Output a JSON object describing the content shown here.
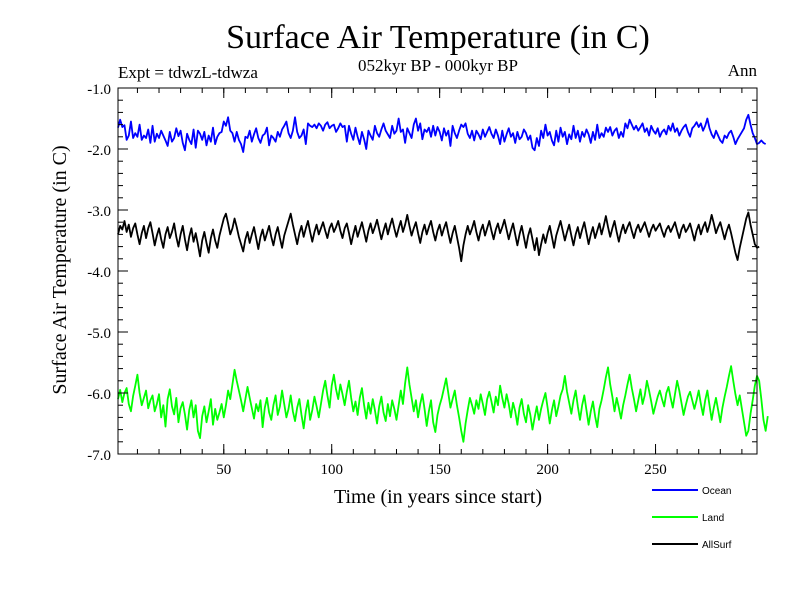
{
  "chart_data": {
    "type": "line",
    "title": "Surface Air Temperature (in C)",
    "subtitle": "052kyr BP - 000kyr BP",
    "experiment_label": "Expt = tdwzL-tdwza",
    "season_label": "Ann",
    "xlabel": "Time (in years since start)",
    "ylabel": "Surface Air Temperature (in C)",
    "xlim": [
      1,
      297
    ],
    "ylim": [
      -7.0,
      -1.0
    ],
    "xticks": [
      50,
      100,
      150,
      200,
      250
    ],
    "xtick_labels": [
      "50",
      "100",
      "150",
      "200",
      "250"
    ],
    "yticks": [
      -7.0,
      -6.0,
      -5.0,
      -4.0,
      -3.0,
      -2.0,
      -1.0
    ],
    "ytick_labels": [
      "-7.0",
      "-6.0",
      "-5.0",
      "-4.0",
      "-3.0",
      "-2.0",
      "-1.0"
    ],
    "grid": false,
    "legend_position": "bottom-right, below plot",
    "series": [
      {
        "name": "Ocean",
        "color": "#0000ff",
        "values": [
          -1.65,
          -1.52,
          -1.64,
          -1.61,
          -1.85,
          -1.78,
          -1.55,
          -1.82,
          -1.74,
          -1.8,
          -1.6,
          -1.85,
          -1.78,
          -1.82,
          -1.68,
          -1.9,
          -1.62,
          -1.88,
          -1.75,
          -1.82,
          -1.7,
          -1.78,
          -1.86,
          -1.95,
          -1.72,
          -1.88,
          -1.82,
          -1.66,
          -1.79,
          -1.7,
          -1.9,
          -2.02,
          -1.75,
          -1.85,
          -1.92,
          -1.68,
          -1.98,
          -1.7,
          -1.75,
          -1.85,
          -1.72,
          -1.94,
          -1.78,
          -1.88,
          -1.65,
          -1.92,
          -1.8,
          -1.74,
          -1.72,
          -1.55,
          -1.62,
          -1.48,
          -1.7,
          -1.74,
          -1.88,
          -1.72,
          -1.85,
          -1.92,
          -2.05,
          -1.8,
          -1.82,
          -1.7,
          -1.88,
          -1.76,
          -1.66,
          -1.82,
          -1.9,
          -1.78,
          -1.75,
          -1.65,
          -1.94,
          -1.78,
          -1.82,
          -1.88,
          -1.72,
          -1.8,
          -1.68,
          -1.62,
          -1.55,
          -1.74,
          -1.82,
          -1.7,
          -1.48,
          -1.72,
          -1.82,
          -1.78,
          -1.68,
          -1.92,
          -1.58,
          -1.62,
          -1.64,
          -1.6,
          -1.66,
          -1.58,
          -1.62,
          -1.7,
          -1.6,
          -1.56,
          -1.66,
          -1.62,
          -1.6,
          -1.72,
          -1.66,
          -1.58,
          -1.64,
          -1.62,
          -1.88,
          -1.62,
          -1.75,
          -1.85,
          -1.65,
          -1.8,
          -1.92,
          -1.72,
          -1.84,
          -2.0,
          -1.7,
          -1.78,
          -1.85,
          -1.62,
          -1.74,
          -1.8,
          -1.68,
          -1.58,
          -1.7,
          -1.76,
          -1.82,
          -1.62,
          -1.75,
          -1.7,
          -1.5,
          -1.72,
          -1.68,
          -1.9,
          -1.66,
          -1.74,
          -1.82,
          -1.6,
          -1.5,
          -1.7,
          -1.58,
          -1.84,
          -1.68,
          -1.72,
          -1.65,
          -1.8,
          -1.62,
          -1.78,
          -1.64,
          -1.72,
          -1.86,
          -1.66,
          -1.78,
          -1.7,
          -1.95,
          -1.62,
          -1.74,
          -1.82,
          -1.7,
          -1.6,
          -1.64,
          -1.58,
          -1.75,
          -1.82,
          -1.7,
          -1.86,
          -1.7,
          -1.76,
          -1.84,
          -1.68,
          -1.8,
          -1.72,
          -1.64,
          -1.75,
          -1.82,
          -1.68,
          -1.78,
          -1.92,
          -1.7,
          -1.88,
          -1.76,
          -1.66,
          -1.8,
          -1.74,
          -1.9,
          -1.72,
          -1.84,
          -1.8,
          -1.68,
          -1.74,
          -1.85,
          -1.78,
          -1.98,
          -2.02,
          -1.82,
          -1.95,
          -1.7,
          -1.82,
          -1.6,
          -1.78,
          -1.72,
          -1.86,
          -1.94,
          -1.7,
          -1.88,
          -1.65,
          -1.8,
          -1.72,
          -1.92,
          -1.76,
          -1.84,
          -1.62,
          -1.82,
          -1.7,
          -1.88,
          -1.72,
          -1.8,
          -1.68,
          -1.76,
          -1.9,
          -1.72,
          -1.85,
          -1.6,
          -1.82,
          -1.74,
          -1.8,
          -1.65,
          -1.72,
          -1.64,
          -1.78,
          -1.7,
          -1.66,
          -1.82,
          -1.72,
          -1.8,
          -1.58,
          -1.66,
          -1.52,
          -1.6,
          -1.68,
          -1.62,
          -1.7,
          -1.64,
          -1.58,
          -1.72,
          -1.66,
          -1.78,
          -1.62,
          -1.7,
          -1.75,
          -1.66,
          -1.8,
          -1.72,
          -1.68,
          -1.76,
          -1.62,
          -1.7,
          -1.58,
          -1.72,
          -1.66,
          -1.78,
          -1.7,
          -1.64,
          -1.6,
          -1.72,
          -1.8,
          -1.66,
          -1.62,
          -1.56,
          -1.64,
          -1.58,
          -1.7,
          -1.62,
          -1.5,
          -1.66,
          -1.76,
          -1.82,
          -1.7,
          -1.78,
          -1.86,
          -1.9,
          -1.78,
          -1.82,
          -1.74,
          -1.7,
          -1.8,
          -1.92,
          -1.84,
          -1.78,
          -1.72,
          -1.66,
          -1.52,
          -1.44,
          -1.6,
          -1.74,
          -1.82,
          -1.92,
          -1.9,
          -1.86,
          -1.9,
          -1.92
        ]
      },
      {
        "name": "Land",
        "color": "#00ff00",
        "values": [
          -6.1,
          -5.95,
          -6.15,
          -6.0,
          -5.92,
          -6.18,
          -6.3,
          -6.05,
          -5.88,
          -5.7,
          -6.0,
          -6.2,
          -6.08,
          -5.96,
          -6.25,
          -6.12,
          -6.04,
          -6.3,
          -6.18,
          -6.02,
          -6.4,
          -6.2,
          -6.55,
          -6.1,
          -5.94,
          -6.22,
          -6.35,
          -6.08,
          -6.48,
          -6.25,
          -6.15,
          -6.35,
          -6.6,
          -6.28,
          -6.12,
          -6.4,
          -6.2,
          -6.62,
          -6.74,
          -6.38,
          -6.22,
          -6.48,
          -6.3,
          -6.1,
          -6.52,
          -6.26,
          -6.44,
          -6.32,
          -6.18,
          -6.4,
          -6.2,
          -5.96,
          -6.1,
          -5.86,
          -5.62,
          -5.8,
          -5.96,
          -6.12,
          -6.3,
          -6.1,
          -5.9,
          -6.08,
          -6.25,
          -6.42,
          -6.18,
          -6.3,
          -6.12,
          -6.56,
          -6.24,
          -6.08,
          -6.32,
          -6.44,
          -6.2,
          -6.04,
          -6.36,
          -6.22,
          -5.96,
          -6.18,
          -6.4,
          -6.26,
          -6.04,
          -6.3,
          -6.46,
          -6.24,
          -6.1,
          -6.36,
          -6.58,
          -6.3,
          -6.12,
          -6.44,
          -6.28,
          -6.06,
          -6.22,
          -6.4,
          -6.18,
          -5.96,
          -5.8,
          -6.04,
          -6.24,
          -5.88,
          -5.7,
          -5.94,
          -6.1,
          -5.86,
          -6.02,
          -6.2,
          -5.98,
          -5.8,
          -6.08,
          -6.3,
          -6.14,
          -6.36,
          -6.08,
          -5.92,
          -6.2,
          -6.42,
          -6.16,
          -6.34,
          -6.1,
          -6.28,
          -6.5,
          -6.22,
          -6.06,
          -6.32,
          -6.46,
          -6.18,
          -6.38,
          -6.12,
          -6.26,
          -6.44,
          -6.2,
          -5.96,
          -6.18,
          -5.84,
          -5.58,
          -5.86,
          -6.08,
          -6.3,
          -6.12,
          -6.4,
          -6.18,
          -6.02,
          -6.26,
          -6.54,
          -6.3,
          -6.12,
          -6.48,
          -6.64,
          -6.36,
          -6.2,
          -6.08,
          -5.92,
          -5.76,
          -6.0,
          -6.24,
          -6.1,
          -5.96,
          -6.2,
          -6.4,
          -6.62,
          -6.8,
          -6.5,
          -6.28,
          -6.08,
          -6.2,
          -6.34,
          -6.12,
          -6.26,
          -6.02,
          -6.18,
          -6.36,
          -6.1,
          -5.98,
          -6.14,
          -6.32,
          -6.06,
          -6.2,
          -5.88,
          -6.08,
          -6.24,
          -6.02,
          -6.18,
          -6.4,
          -6.16,
          -6.3,
          -6.52,
          -6.24,
          -6.1,
          -6.34,
          -6.48,
          -6.2,
          -6.36,
          -6.6,
          -6.4,
          -6.22,
          -6.44,
          -6.26,
          -6.12,
          -6.0,
          -6.24,
          -6.5,
          -6.28,
          -6.12,
          -6.38,
          -6.22,
          -6.04,
          -5.94,
          -5.72,
          -5.98,
          -6.16,
          -6.34,
          -6.12,
          -5.96,
          -6.22,
          -6.44,
          -6.2,
          -6.04,
          -6.28,
          -6.52,
          -6.3,
          -6.14,
          -6.38,
          -6.56,
          -6.26,
          -6.12,
          -5.94,
          -5.74,
          -5.58,
          -5.86,
          -6.06,
          -6.3,
          -6.08,
          -6.24,
          -6.42,
          -6.2,
          -6.04,
          -5.86,
          -5.7,
          -5.92,
          -6.1,
          -6.3,
          -6.12,
          -5.94,
          -6.18,
          -6.04,
          -5.8,
          -5.96,
          -6.14,
          -6.34,
          -6.2,
          -6.06,
          -5.96,
          -6.1,
          -6.22,
          -6.0,
          -5.9,
          -6.08,
          -6.24,
          -6.02,
          -5.8,
          -5.96,
          -6.16,
          -6.36,
          -6.2,
          -6.06,
          -5.98,
          -6.12,
          -6.26,
          -6.12,
          -5.96,
          -6.18,
          -6.36,
          -6.12,
          -5.96,
          -6.2,
          -6.44,
          -6.24,
          -6.08,
          -6.28,
          -6.48,
          -6.24,
          -6.06,
          -5.9,
          -5.72,
          -5.56,
          -5.8,
          -6.02,
          -6.2,
          -6.04,
          -6.26,
          -6.48,
          -6.7,
          -6.62,
          -6.34,
          -6.12,
          -5.88,
          -5.72,
          -5.8,
          -6.1,
          -6.44,
          -6.62,
          -6.38
        ]
      },
      {
        "name": "AllSurf",
        "color": "#000000",
        "values": [
          -3.4,
          -3.26,
          -3.32,
          -3.18,
          -3.36,
          -3.24,
          -3.44,
          -3.3,
          -3.22,
          -3.4,
          -3.56,
          -3.38,
          -3.26,
          -3.46,
          -3.3,
          -3.2,
          -3.38,
          -3.58,
          -3.42,
          -3.3,
          -3.48,
          -3.62,
          -3.4,
          -3.28,
          -3.46,
          -3.36,
          -3.22,
          -3.44,
          -3.6,
          -3.4,
          -3.26,
          -3.48,
          -3.66,
          -3.44,
          -3.3,
          -3.52,
          -3.38,
          -3.56,
          -3.76,
          -3.5,
          -3.36,
          -3.54,
          -3.7,
          -3.46,
          -3.32,
          -3.5,
          -3.62,
          -3.42,
          -3.28,
          -3.14,
          -3.06,
          -3.22,
          -3.4,
          -3.3,
          -3.14,
          -3.28,
          -3.44,
          -3.56,
          -3.68,
          -3.48,
          -3.36,
          -3.54,
          -3.4,
          -3.28,
          -3.46,
          -3.64,
          -3.44,
          -3.32,
          -3.5,
          -3.38,
          -3.26,
          -3.44,
          -3.58,
          -3.4,
          -3.28,
          -3.46,
          -3.62,
          -3.42,
          -3.3,
          -3.18,
          -3.06,
          -3.24,
          -3.4,
          -3.56,
          -3.38,
          -3.26,
          -3.44,
          -3.3,
          -3.18,
          -3.36,
          -3.52,
          -3.36,
          -3.24,
          -3.4,
          -3.3,
          -3.2,
          -3.34,
          -3.46,
          -3.3,
          -3.22,
          -3.36,
          -3.28,
          -3.18,
          -3.34,
          -3.46,
          -3.3,
          -3.22,
          -3.38,
          -3.56,
          -3.4,
          -3.26,
          -3.44,
          -3.32,
          -3.2,
          -3.36,
          -3.52,
          -3.34,
          -3.22,
          -3.38,
          -3.28,
          -3.16,
          -3.32,
          -3.48,
          -3.34,
          -3.22,
          -3.4,
          -3.26,
          -3.14,
          -3.3,
          -3.44,
          -3.3,
          -3.18,
          -3.36,
          -3.24,
          -3.08,
          -3.26,
          -3.42,
          -3.3,
          -3.2,
          -3.38,
          -3.54,
          -3.36,
          -3.24,
          -3.4,
          -3.28,
          -3.18,
          -3.36,
          -3.5,
          -3.34,
          -3.24,
          -3.42,
          -3.3,
          -3.2,
          -3.38,
          -3.54,
          -3.38,
          -3.26,
          -3.44,
          -3.62,
          -3.84,
          -3.58,
          -3.4,
          -3.26,
          -3.4,
          -3.3,
          -3.18,
          -3.36,
          -3.5,
          -3.34,
          -3.24,
          -3.42,
          -3.3,
          -3.18,
          -3.34,
          -3.48,
          -3.32,
          -3.22,
          -3.38,
          -3.28,
          -3.16,
          -3.32,
          -3.48,
          -3.34,
          -3.22,
          -3.4,
          -3.58,
          -3.4,
          -3.26,
          -3.44,
          -3.62,
          -3.42,
          -3.3,
          -3.48,
          -3.66,
          -3.46,
          -3.74,
          -3.56,
          -3.4,
          -3.54,
          -3.38,
          -3.26,
          -3.44,
          -3.62,
          -3.42,
          -3.3,
          -3.18,
          -3.34,
          -3.5,
          -3.36,
          -3.24,
          -3.42,
          -3.58,
          -3.4,
          -3.28,
          -3.46,
          -3.32,
          -3.2,
          -3.38,
          -3.56,
          -3.4,
          -3.28,
          -3.46,
          -3.34,
          -3.22,
          -3.4,
          -3.26,
          -3.1,
          -3.28,
          -3.44,
          -3.3,
          -3.18,
          -3.36,
          -3.52,
          -3.36,
          -3.24,
          -3.38,
          -3.28,
          -3.2,
          -3.34,
          -3.46,
          -3.32,
          -3.24,
          -3.36,
          -3.28,
          -3.2,
          -3.32,
          -3.44,
          -3.32,
          -3.24,
          -3.34,
          -3.28,
          -3.22,
          -3.34,
          -3.44,
          -3.32,
          -3.26,
          -3.36,
          -3.28,
          -3.2,
          -3.34,
          -3.46,
          -3.32,
          -3.24,
          -3.36,
          -3.3,
          -3.22,
          -3.36,
          -3.5,
          -3.34,
          -3.24,
          -3.4,
          -3.28,
          -3.2,
          -3.36,
          -3.24,
          -3.08,
          -3.22,
          -3.38,
          -3.28,
          -3.2,
          -3.34,
          -3.48,
          -3.34,
          -3.24,
          -3.38,
          -3.54,
          -3.7,
          -3.82,
          -3.62,
          -3.46,
          -3.3,
          -3.14,
          -3.04,
          -3.24,
          -3.4,
          -3.56,
          -3.62,
          -3.6
        ]
      }
    ]
  }
}
